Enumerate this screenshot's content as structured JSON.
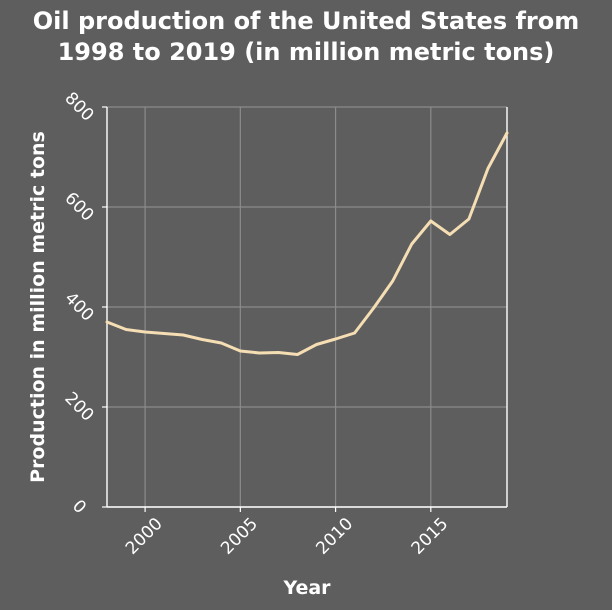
{
  "chart_data": {
    "type": "line",
    "title_lines": [
      "Oil production of the United States from",
      "1998 to 2019 (in million metric tons)"
    ],
    "xlabel": "Year",
    "ylabel": "Production in million metric tons",
    "xlim": [
      1998,
      2019
    ],
    "ylim": [
      0,
      800
    ],
    "x_ticks": [
      2000,
      2005,
      2010,
      2015
    ],
    "y_ticks": [
      0,
      200,
      400,
      600,
      800
    ],
    "grid": true,
    "line_color": "#f5deb3",
    "series": [
      {
        "x": [
          1998,
          1999,
          2000,
          2001,
          2002,
          2003,
          2004,
          2005,
          2006,
          2007,
          2008,
          2009,
          2010,
          2011,
          2012,
          2013,
          2014,
          2015,
          2016,
          2017,
          2018,
          2019
        ],
        "values": [
          370,
          355,
          350,
          347,
          344,
          335,
          328,
          312,
          308,
          309,
          305,
          325,
          336,
          348,
          398,
          452,
          526,
          572,
          545,
          576,
          677,
          748
        ]
      }
    ]
  }
}
